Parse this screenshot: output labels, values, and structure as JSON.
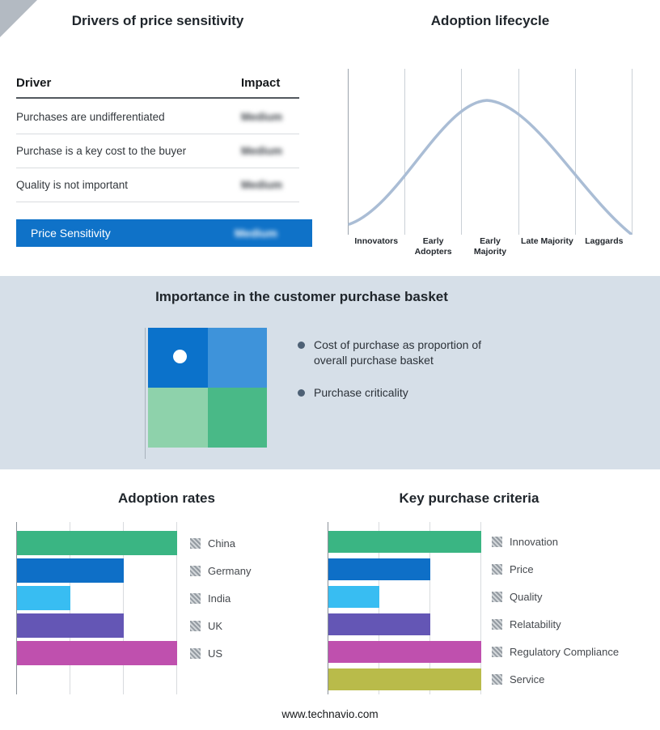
{
  "drivers": {
    "title": "Drivers of price sensitivity",
    "header": {
      "driver": "Driver",
      "impact": "Impact"
    },
    "rows": [
      {
        "driver": "Purchases are undifferentiated",
        "impact": "Medium"
      },
      {
        "driver": "Purchase is a key cost to the buyer",
        "impact": "Medium"
      },
      {
        "driver": "Quality is not important",
        "impact": "Medium"
      }
    ],
    "summary": {
      "label": "Price Sensitivity",
      "impact": "Medium"
    },
    "accent_color": "#0f72c8"
  },
  "basket": {
    "title": "Importance in the customer purchase basket",
    "bullets": [
      "Cost of purchase as proportion of overall purchase basket",
      "Purchase criticality"
    ],
    "quadrant_colors": [
      "#0b72cb",
      "#3e93da",
      "#8ed2ab",
      "#49b987"
    ]
  },
  "chart_data": [
    {
      "type": "line",
      "title": "Adoption lifecycle",
      "categories": [
        "Innovators",
        "Early Adopters",
        "Early Majority",
        "Late Majority",
        "Laggards"
      ],
      "values": [
        0.05,
        0.5,
        1.0,
        0.5,
        0.05
      ],
      "description": "Bell-shaped adoption curve peaking at Early Majority",
      "line_color": "#aabdd5",
      "grid": true
    },
    {
      "type": "bar",
      "title": "Adoption rates",
      "orientation": "horizontal",
      "categories": [
        "China",
        "Germany",
        "India",
        "UK",
        "US"
      ],
      "values": [
        3,
        2,
        1,
        2,
        3
      ],
      "colors": [
        "#3ab583",
        "#0e6fc7",
        "#38bdf2",
        "#6456b5",
        "#bf50ae"
      ],
      "xlim": [
        0,
        3
      ],
      "grid": true,
      "legend_position": "right"
    },
    {
      "type": "bar",
      "title": "Key purchase criteria",
      "orientation": "horizontal",
      "categories": [
        "Innovation",
        "Price",
        "Quality",
        "Relatability",
        "Regulatory Compliance",
        "Service"
      ],
      "values": [
        3,
        2,
        1,
        2,
        3,
        3
      ],
      "colors": [
        "#3ab583",
        "#0e6fc7",
        "#38bdf2",
        "#6456b5",
        "#bf50ae",
        "#b9bb4a"
      ],
      "xlim": [
        0,
        3
      ],
      "grid": true,
      "legend_position": "right"
    }
  ],
  "footer": {
    "url": "www.technavio.com"
  }
}
